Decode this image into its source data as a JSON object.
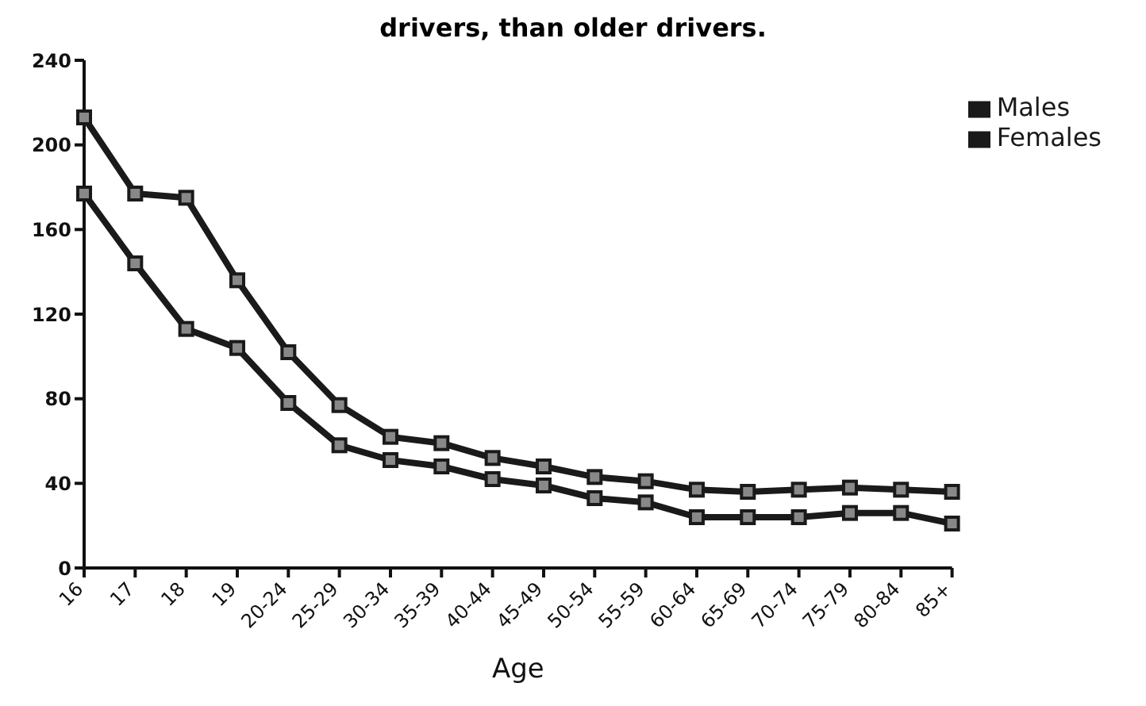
{
  "chart_data": {
    "type": "line",
    "title": "drivers, than older drivers.",
    "xlabel": "Age",
    "categories": [
      "16",
      "17",
      "18",
      "19",
      "20-24",
      "25-29",
      "30-34",
      "35-39",
      "40-44",
      "45-49",
      "50-54",
      "55-59",
      "60-64",
      "65-69",
      "70-74",
      "75-79",
      "80-84",
      "85+"
    ],
    "series": [
      {
        "name": "Males",
        "color": "#1a1a1a",
        "values": [
          213,
          177,
          175,
          136,
          102,
          77,
          62,
          59,
          52,
          48,
          43,
          41,
          37,
          36,
          37,
          38,
          37,
          36
        ]
      },
      {
        "name": "Females",
        "color": "#1a1a1a",
        "values": [
          177,
          144,
          113,
          104,
          78,
          58,
          51,
          48,
          42,
          39,
          33,
          31,
          24,
          24,
          24,
          26,
          26,
          21
        ]
      }
    ],
    "ylim": [
      0,
      240
    ],
    "yticks": [
      0,
      40,
      80,
      120,
      160,
      200,
      240
    ],
    "grid": false,
    "legend": "top right",
    "marker": "square",
    "line_style": "solid"
  }
}
